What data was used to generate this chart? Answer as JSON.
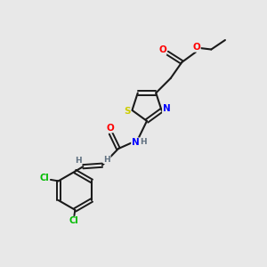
{
  "background_color": "#e8e8e8",
  "bond_color": "#1a1a1a",
  "atom_colors": {
    "O": "#ff0000",
    "N": "#0000ff",
    "S": "#cccc00",
    "Cl": "#00bb00",
    "H": "#607080",
    "C": "#1a1a1a"
  },
  "figsize": [
    3.0,
    3.0
  ],
  "dpi": 100
}
